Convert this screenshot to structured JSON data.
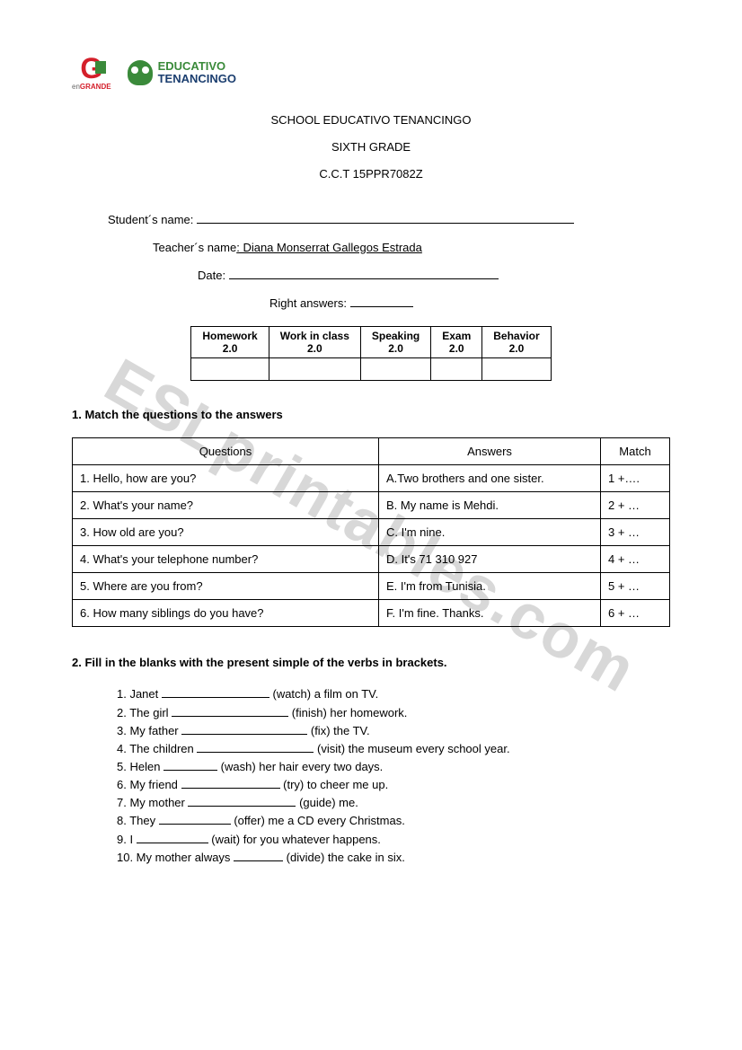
{
  "watermark": "ESLprintables.com",
  "logos": {
    "grande_sub_prefix": "en",
    "grande_sub_bold": "GRANDE",
    "tenan_top": "EDUCATIVO",
    "tenan_bottom": "TENANCINGO"
  },
  "header": {
    "line1": "SCHOOL EDUCATIVO TENANCINGO",
    "line2": "SIXTH GRADE",
    "line3": "C.C.T 15PPR7082Z"
  },
  "info": {
    "student_label": "Student´s name: ",
    "student_line_width": 420,
    "teacher_label": "Teacher´s name",
    "teacher_value": ": Diana Monserrat Gallegos Estrada",
    "date_label": "Date: ",
    "date_line_width": 300,
    "right_label": "Right answers: ",
    "right_line_width": 70
  },
  "grade_table": {
    "headers": [
      {
        "label": "Homework",
        "points": "2.0"
      },
      {
        "label": "Work in class",
        "points": "2.0"
      },
      {
        "label": "Speaking",
        "points": "2.0"
      },
      {
        "label": "Exam",
        "points": "2.0"
      },
      {
        "label": "Behavior",
        "points": "2.0"
      }
    ]
  },
  "section1": {
    "title": "1.   Match the questions to the answers",
    "col_questions": "Questions",
    "col_answers": "Answers",
    "col_match": "Match",
    "rows": [
      {
        "q": "1. Hello, how are you?",
        "a": "A.Two brothers and one sister.",
        "m": "1 +…."
      },
      {
        "q": "2. What's your name?",
        "a": "B. My name is Mehdi.",
        "m": "2 + …"
      },
      {
        "q": "3. How old are you?",
        "a": "C. I'm nine.",
        "m": "3 + …"
      },
      {
        "q": "4. What's your telephone number?",
        "a": "D. It's 71 310 927",
        "m": "4 + …"
      },
      {
        "q": "5. Where are you from?",
        "a": "E. I'm from Tunisia.",
        "m": "5 + …"
      },
      {
        "q": "6. How many siblings do you have?",
        "a": "F. I'm fine. Thanks.",
        "m": "6 + …"
      }
    ]
  },
  "section2": {
    "title": "2.    Fill in the blanks with the present simple of the verbs in brackets.",
    "items": [
      {
        "pre": "1. Janet ",
        "blank_w": 120,
        "post": " (watch) a film on TV."
      },
      {
        "pre": "2. The girl ",
        "blank_w": 130,
        "post": " (finish) her homework."
      },
      {
        "pre": "3. My father ",
        "blank_w": 140,
        "post": " (fix) the TV."
      },
      {
        "pre": "4. The children ",
        "blank_w": 130,
        "post": " (visit) the museum every school year."
      },
      {
        "pre": "5. Helen ",
        "blank_w": 60,
        "post": " (wash) her hair every two days."
      },
      {
        "pre": "6. My friend ",
        "blank_w": 110,
        "post": " (try) to cheer me up."
      },
      {
        "pre": "7. My mother ",
        "blank_w": 120,
        "post": " (guide) me."
      },
      {
        "pre": "8. They ",
        "blank_w": 80,
        "post": " (offer) me a CD every Christmas."
      },
      {
        "pre": "9. I ",
        "blank_w": 80,
        "post": " (wait) for you whatever happens."
      },
      {
        "pre": "10. My mother always ",
        "blank_w": 55,
        "post": " (divide) the cake in six."
      }
    ]
  }
}
